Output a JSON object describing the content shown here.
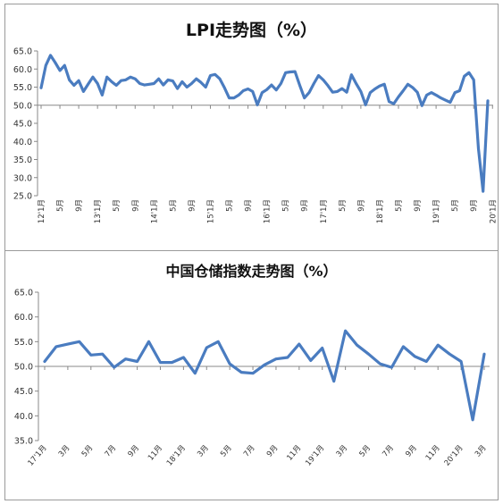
{
  "chart_data": [
    {
      "type": "line",
      "title": "LPI走势图（%）",
      "xlabel": "",
      "ylabel": "",
      "ylim": [
        25.0,
        65.0
      ],
      "yticks": [
        "25.0",
        "30.0",
        "35.0",
        "40.0",
        "45.0",
        "50.0",
        "55.0",
        "60.0",
        "65.0"
      ],
      "reference_line": 50,
      "grid": false,
      "x_tick_labels": [
        "12'1月",
        "5月",
        "9月",
        "13'1月",
        "5月",
        "9月",
        "14'1月",
        "5月",
        "9月",
        "15'1月",
        "5月",
        "9月",
        "16'1月",
        "5月",
        "9月",
        "17'1月",
        "5月",
        "9月",
        "18'1月",
        "5月",
        "9月",
        "19'1月",
        "5月",
        "9月",
        "20'1月"
      ],
      "x_tick_positions": [
        0,
        4,
        8,
        12,
        16,
        20,
        24,
        28,
        32,
        36,
        40,
        44,
        48,
        52,
        56,
        60,
        64,
        68,
        72,
        76,
        80,
        84,
        88,
        92,
        96
      ],
      "series": [
        {
          "color": "#4a7cc0",
          "values": [
            54.8,
            61.0,
            63.8,
            61.8,
            59.6,
            61.0,
            57.0,
            55.5,
            56.8,
            53.8,
            55.8,
            57.8,
            56.0,
            52.8,
            57.8,
            56.5,
            55.5,
            56.8,
            57.0,
            57.8,
            57.3,
            56.0,
            55.6,
            55.8,
            56.0,
            57.3,
            55.6,
            57.0,
            56.7,
            54.6,
            56.5,
            55.0,
            56.0,
            57.3,
            56.3,
            55.0,
            58.2,
            58.5,
            57.3,
            54.8,
            52.0,
            52.0,
            52.8,
            54.0,
            54.5,
            53.8,
            50.1,
            53.5,
            54.3,
            55.6,
            54.2,
            56.0,
            59.0,
            59.2,
            59.3,
            55.5,
            52.0,
            53.5,
            56.0,
            58.2,
            57.0,
            55.4,
            53.6,
            53.8,
            54.6,
            53.6,
            58.4,
            56.0,
            53.8,
            50.1,
            53.5,
            54.5,
            55.3,
            55.8,
            51.0,
            50.4,
            52.3,
            54.0,
            55.8,
            54.9,
            53.6,
            49.9,
            52.8,
            53.5,
            52.8,
            52.0,
            51.4,
            50.8,
            53.5,
            54.0,
            58.0,
            59.0,
            57.0,
            38.0,
            26.2,
            51.2
          ]
        }
      ]
    },
    {
      "type": "line",
      "title": "中国仓储指数走势图（%）",
      "xlabel": "",
      "ylabel": "",
      "ylim": [
        35.0,
        65.0
      ],
      "yticks": [
        "35.0",
        "40.0",
        "45.0",
        "50.0",
        "55.0",
        "60.0",
        "65.0"
      ],
      "reference_line": 50,
      "grid": false,
      "x_tick_labels": [
        "17'1月",
        "3月",
        "5月",
        "7月",
        "9月",
        "11月",
        "18'1月",
        "3月",
        "5月",
        "7月",
        "9月",
        "11月",
        "19'1月",
        "3月",
        "5月",
        "7月",
        "9月",
        "11月",
        "20'1月",
        "3月"
      ],
      "x_tick_positions": [
        0,
        2,
        4,
        6,
        8,
        10,
        12,
        14,
        16,
        18,
        20,
        22,
        24,
        26,
        28,
        30,
        32,
        34,
        36,
        38
      ],
      "series": [
        {
          "color": "#4a7cc0",
          "values": [
            51.0,
            54.0,
            54.5,
            55.0,
            52.3,
            52.5,
            49.8,
            51.5,
            51.0,
            55.0,
            50.8,
            50.8,
            51.8,
            48.6,
            53.8,
            55.0,
            50.5,
            48.8,
            48.6,
            50.3,
            51.5,
            51.8,
            54.5,
            51.2,
            53.7,
            47.0,
            57.2,
            54.3,
            52.5,
            50.5,
            49.8,
            54.0,
            52.0,
            51.0,
            54.3,
            52.5,
            51.0,
            39.2,
            52.5
          ]
        }
      ]
    }
  ]
}
